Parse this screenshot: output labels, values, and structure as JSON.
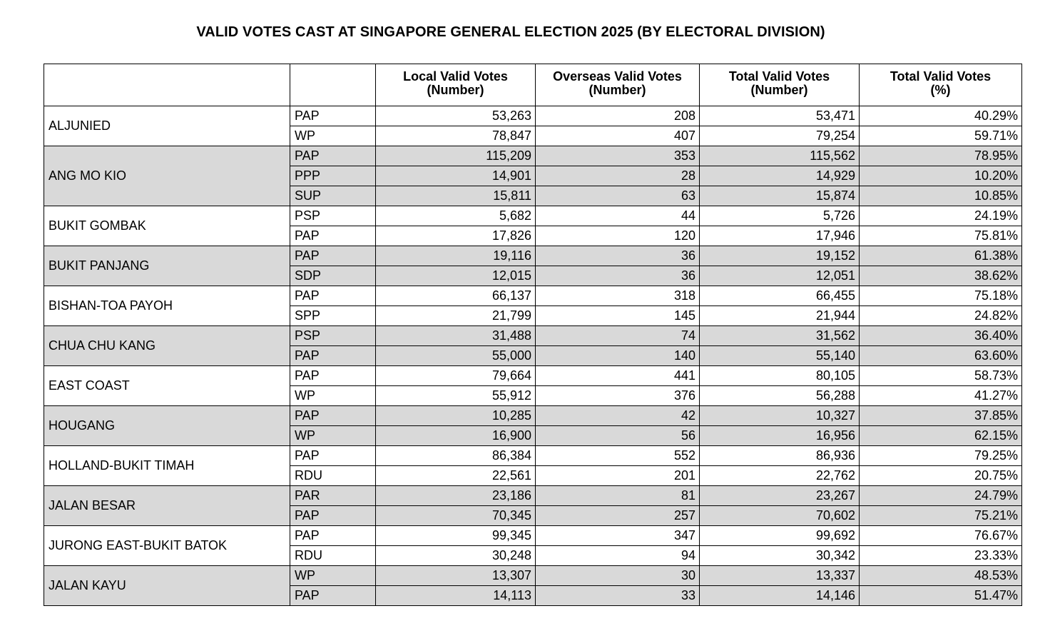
{
  "title": "VALID VOTES CAST AT SINGAPORE GENERAL ELECTION 2025 (BY ELECTORAL DIVISION)",
  "headers": {
    "division": "",
    "party": "",
    "local": [
      "Local Valid Votes",
      "(Number)"
    ],
    "overseas": [
      "Overseas Valid Votes",
      "(Number)"
    ],
    "total": [
      "Total Valid Votes",
      "(Number)"
    ],
    "percent": [
      "Total Valid Votes",
      "(%)"
    ]
  },
  "shade_color": "#d9d9d9",
  "divisions": [
    {
      "name": "ALJUNIED",
      "shaded": false,
      "rows": [
        {
          "party": "PAP",
          "local": "53,263",
          "overseas": "208",
          "total": "53,471",
          "pct": "40.29%"
        },
        {
          "party": "WP",
          "local": "78,847",
          "overseas": "407",
          "total": "79,254",
          "pct": "59.71%"
        }
      ]
    },
    {
      "name": "ANG MO KIO",
      "shaded": true,
      "rows": [
        {
          "party": "PAP",
          "local": "115,209",
          "overseas": "353",
          "total": "115,562",
          "pct": "78.95%"
        },
        {
          "party": "PPP",
          "local": "14,901",
          "overseas": "28",
          "total": "14,929",
          "pct": "10.20%"
        },
        {
          "party": "SUP",
          "local": "15,811",
          "overseas": "63",
          "total": "15,874",
          "pct": "10.85%"
        }
      ]
    },
    {
      "name": "BUKIT GOMBAK",
      "shaded": false,
      "rows": [
        {
          "party": "PSP",
          "local": "5,682",
          "overseas": "44",
          "total": "5,726",
          "pct": "24.19%"
        },
        {
          "party": "PAP",
          "local": "17,826",
          "overseas": "120",
          "total": "17,946",
          "pct": "75.81%"
        }
      ]
    },
    {
      "name": "BUKIT PANJANG",
      "shaded": true,
      "rows": [
        {
          "party": "PAP",
          "local": "19,116",
          "overseas": "36",
          "total": "19,152",
          "pct": "61.38%"
        },
        {
          "party": "SDP",
          "local": "12,015",
          "overseas": "36",
          "total": "12,051",
          "pct": "38.62%"
        }
      ]
    },
    {
      "name": "BISHAN-TOA PAYOH",
      "shaded": false,
      "rows": [
        {
          "party": "PAP",
          "local": "66,137",
          "overseas": "318",
          "total": "66,455",
          "pct": "75.18%"
        },
        {
          "party": "SPP",
          "local": "21,799",
          "overseas": "145",
          "total": "21,944",
          "pct": "24.82%"
        }
      ]
    },
    {
      "name": "CHUA CHU KANG",
      "shaded": true,
      "rows": [
        {
          "party": "PSP",
          "local": "31,488",
          "overseas": "74",
          "total": "31,562",
          "pct": "36.40%"
        },
        {
          "party": "PAP",
          "local": "55,000",
          "overseas": "140",
          "total": "55,140",
          "pct": "63.60%"
        }
      ]
    },
    {
      "name": "EAST COAST",
      "shaded": false,
      "rows": [
        {
          "party": "PAP",
          "local": "79,664",
          "overseas": "441",
          "total": "80,105",
          "pct": "58.73%"
        },
        {
          "party": "WP",
          "local": "55,912",
          "overseas": "376",
          "total": "56,288",
          "pct": "41.27%"
        }
      ]
    },
    {
      "name": "HOUGANG",
      "shaded": true,
      "rows": [
        {
          "party": "PAP",
          "local": "10,285",
          "overseas": "42",
          "total": "10,327",
          "pct": "37.85%"
        },
        {
          "party": "WP",
          "local": "16,900",
          "overseas": "56",
          "total": "16,956",
          "pct": "62.15%"
        }
      ]
    },
    {
      "name": "HOLLAND-BUKIT TIMAH",
      "shaded": false,
      "rows": [
        {
          "party": "PAP",
          "local": "86,384",
          "overseas": "552",
          "total": "86,936",
          "pct": "79.25%"
        },
        {
          "party": "RDU",
          "local": "22,561",
          "overseas": "201",
          "total": "22,762",
          "pct": "20.75%"
        }
      ]
    },
    {
      "name": "JALAN BESAR",
      "shaded": true,
      "rows": [
        {
          "party": "PAR",
          "local": "23,186",
          "overseas": "81",
          "total": "23,267",
          "pct": "24.79%"
        },
        {
          "party": "PAP",
          "local": "70,345",
          "overseas": "257",
          "total": "70,602",
          "pct": "75.21%"
        }
      ]
    },
    {
      "name": "JURONG EAST-BUKIT BATOK",
      "shaded": false,
      "rows": [
        {
          "party": "PAP",
          "local": "99,345",
          "overseas": "347",
          "total": "99,692",
          "pct": "76.67%"
        },
        {
          "party": "RDU",
          "local": "30,248",
          "overseas": "94",
          "total": "30,342",
          "pct": "23.33%"
        }
      ]
    },
    {
      "name": "JALAN KAYU",
      "shaded": true,
      "rows": [
        {
          "party": "WP",
          "local": "13,307",
          "overseas": "30",
          "total": "13,337",
          "pct": "48.53%"
        },
        {
          "party": "PAP",
          "local": "14,113",
          "overseas": "33",
          "total": "14,146",
          "pct": "51.47%"
        }
      ]
    }
  ]
}
